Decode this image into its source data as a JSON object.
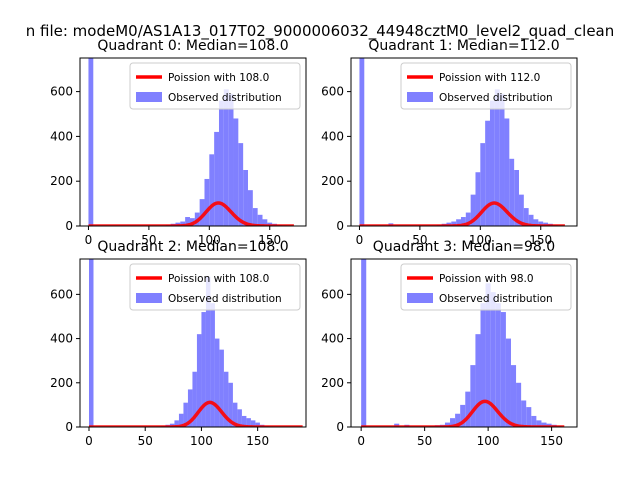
{
  "figure": {
    "suptitle": "n file: modeM0/AS1A13_017T02_9000006032_44948cztM0_level2_quad_clean"
  },
  "colors": {
    "poisson": "#ff0000",
    "observed": "#8080ff",
    "axes": "#000000"
  },
  "chart_data": [
    {
      "type": "bar",
      "title": "Quadrant 0: Median=108.0",
      "xlabel": "",
      "ylabel": "",
      "xlim": [
        -7,
        180
      ],
      "ylim": [
        0,
        750
      ],
      "xticks": [
        0,
        50,
        100,
        150
      ],
      "yticks": [
        0,
        200,
        400,
        600
      ],
      "bin_width": 4,
      "median": 108,
      "spike": {
        "x": 0,
        "value": 750
      },
      "legend": {
        "position": "top-right",
        "poisson_label": "Poission with 108.0",
        "observed_label": "Observed distribution"
      },
      "series": [
        {
          "name": "Observed distribution",
          "x": [
            64,
            68,
            72,
            76,
            80,
            84,
            88,
            92,
            96,
            100,
            104,
            108,
            112,
            116,
            120,
            124,
            128,
            132,
            136,
            140,
            144,
            148,
            152,
            156,
            160
          ],
          "values": [
            5,
            10,
            15,
            20,
            40,
            35,
            60,
            120,
            210,
            320,
            420,
            560,
            610,
            590,
            480,
            370,
            250,
            160,
            80,
            50,
            30,
            15,
            10,
            5,
            3
          ]
        },
        {
          "name": "Poission with 108.0",
          "lambda": 108,
          "scale": 2680,
          "x_range": [
            0,
            170
          ]
        }
      ]
    },
    {
      "type": "bar",
      "title": "Quadrant 1: Median=112.0",
      "xlabel": "",
      "ylabel": "",
      "xlim": [
        -7,
        180
      ],
      "ylim": [
        0,
        750
      ],
      "xticks": [
        0,
        50,
        100,
        150
      ],
      "yticks": [
        0,
        200,
        400,
        600
      ],
      "bin_width": 4,
      "median": 112,
      "spike": {
        "x": 0,
        "value": 750
      },
      "legend": {
        "position": "top-right",
        "poisson_label": "Poission with 112.0",
        "observed_label": "Observed distribution"
      },
      "series": [
        {
          "name": "Observed distribution",
          "x": [
            24,
            64,
            68,
            72,
            76,
            80,
            84,
            88,
            92,
            96,
            100,
            104,
            108,
            112,
            116,
            120,
            124,
            128,
            132,
            136,
            140,
            144,
            148,
            152,
            156,
            160
          ],
          "values": [
            12,
            5,
            10,
            15,
            20,
            30,
            40,
            60,
            140,
            240,
            370,
            470,
            560,
            610,
            590,
            480,
            300,
            250,
            140,
            80,
            50,
            30,
            20,
            15,
            10,
            5
          ]
        },
        {
          "name": "Poission with 112.0",
          "lambda": 112,
          "scale": 2720,
          "x_range": [
            0,
            170
          ]
        }
      ]
    },
    {
      "type": "bar",
      "title": "Quadrant 2: Median=108.0",
      "xlabel": "",
      "ylabel": "",
      "xlim": [
        -8,
        193
      ],
      "ylim": [
        0,
        760
      ],
      "xticks": [
        0,
        50,
        100,
        150
      ],
      "yticks": [
        0,
        200,
        400,
        600
      ],
      "bin_width": 4,
      "median": 108,
      "spike": {
        "x": 0,
        "value": 760
      },
      "legend": {
        "position": "top-right",
        "poisson_label": "Poission with 108.0",
        "observed_label": "Observed distribution"
      },
      "series": [
        {
          "name": "Observed distribution",
          "x": [
            60,
            64,
            68,
            72,
            76,
            80,
            84,
            88,
            92,
            96,
            100,
            104,
            108,
            112,
            116,
            120,
            124,
            128,
            132,
            136,
            140,
            144,
            148,
            152,
            156,
            160
          ],
          "values": [
            3,
            5,
            10,
            15,
            30,
            60,
            110,
            170,
            250,
            420,
            520,
            680,
            560,
            400,
            350,
            250,
            200,
            110,
            80,
            50,
            40,
            30,
            20,
            10,
            5,
            3
          ]
        },
        {
          "name": "Poission with 108.0",
          "lambda": 108,
          "scale": 2900,
          "x_range": [
            0,
            190
          ]
        }
      ]
    },
    {
      "type": "bar",
      "title": "Quadrant 3: Median=98.0",
      "xlabel": "",
      "ylabel": "",
      "xlim": [
        -8,
        170
      ],
      "ylim": [
        0,
        760
      ],
      "xticks": [
        0,
        50,
        100,
        150
      ],
      "yticks": [
        0,
        200,
        400,
        600
      ],
      "bin_width": 4,
      "median": 98,
      "spike": {
        "x": 0,
        "value": 760
      },
      "legend": {
        "position": "top-right",
        "poisson_label": "Poission with 98.0",
        "observed_label": "Observed distribution"
      },
      "series": [
        {
          "name": "Observed distribution",
          "x": [
            26,
            34,
            54,
            58,
            62,
            66,
            70,
            74,
            78,
            82,
            86,
            90,
            94,
            98,
            102,
            106,
            110,
            114,
            118,
            122,
            126,
            130,
            134,
            138,
            142,
            146,
            150,
            154
          ],
          "values": [
            15,
            10,
            5,
            8,
            10,
            20,
            40,
            60,
            100,
            160,
            280,
            420,
            560,
            650,
            610,
            560,
            520,
            400,
            280,
            200,
            120,
            90,
            50,
            30,
            20,
            15,
            10,
            5
          ]
        },
        {
          "name": "Poission with 98.0",
          "lambda": 98,
          "scale": 2880,
          "x_range": [
            0,
            160
          ]
        }
      ]
    }
  ]
}
